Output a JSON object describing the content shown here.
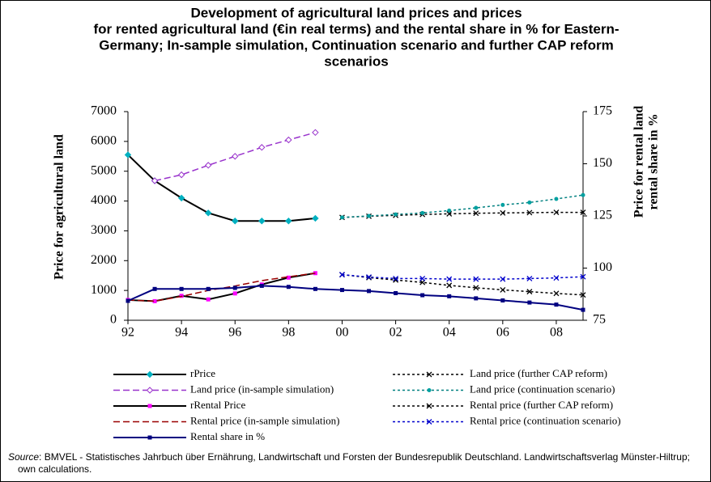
{
  "chart_data": {
    "type": "line",
    "title": [
      "Development of agricultural land prices and prices",
      "for rented agricultural land (€in real terms) and the rental share in % for Eastern-",
      "Germany; In-sample simulation, Continuation scenario and further CAP reform",
      "scenarios"
    ],
    "ylabel": "Price for agricultural land",
    "y2label": [
      "Price for rental land",
      "rental share in %"
    ],
    "xlim": [
      1992,
      2009
    ],
    "xticks": [
      {
        "value": 1992,
        "label": "92"
      },
      {
        "value": 1994,
        "label": "94"
      },
      {
        "value": 1996,
        "label": "96"
      },
      {
        "value": 1998,
        "label": "98"
      },
      {
        "value": 2000,
        "label": "00"
      },
      {
        "value": 2002,
        "label": "02"
      },
      {
        "value": 2004,
        "label": "04"
      },
      {
        "value": 2006,
        "label": "06"
      },
      {
        "value": 2008,
        "label": "08"
      }
    ],
    "ylim": [
      0,
      7000
    ],
    "yticks": [
      0,
      1000,
      2000,
      3000,
      4000,
      5000,
      6000,
      7000
    ],
    "y2lim": [
      75,
      175
    ],
    "y2ticks": [
      75,
      100,
      125,
      150,
      175
    ],
    "series": [
      {
        "name": "rPrice",
        "color": "#000000",
        "marker_color": "#00b0c0",
        "marker": "diamond",
        "dash": "none",
        "x": [
          1992,
          1993,
          1994,
          1995,
          1996,
          1997,
          1998,
          1999
        ],
        "values": [
          5550,
          4680,
          4100,
          3600,
          3330,
          3330,
          3330,
          3420
        ]
      },
      {
        "name": "Land price (in-sample simulation)",
        "color": "#9933cc",
        "marker_color": "#9933cc",
        "marker": "diamond-open",
        "dash": "8 4",
        "x": [
          1993,
          1994,
          1995,
          1996,
          1997,
          1998,
          1999
        ],
        "values": [
          4680,
          4880,
          5200,
          5500,
          5800,
          6050,
          6300
        ]
      },
      {
        "name": "rRental Price",
        "color": "#000000",
        "marker_color": "#ff00ff",
        "marker": "square",
        "dash": "none",
        "x": [
          1992,
          1993,
          1994,
          1995,
          1996,
          1997,
          1998,
          1999
        ],
        "values": [
          680,
          640,
          820,
          700,
          900,
          1200,
          1430,
          1580
        ]
      },
      {
        "name": "Rental price (in-sample simulation)",
        "color": "#990000",
        "marker_color": "#990000",
        "marker": "none",
        "dash": "8 4",
        "x": [
          1992,
          1993,
          1994,
          1995,
          1996,
          1997,
          1998,
          1999
        ],
        "values": [
          680,
          640,
          800,
          1000,
          1150,
          1330,
          1460,
          1580
        ]
      },
      {
        "name": "Rental share in %",
        "color": "#000080",
        "marker_color": "#000080",
        "marker": "square",
        "dash": "none",
        "axis": "y2",
        "x": [
          1992,
          1993,
          1994,
          1995,
          1996,
          1997,
          1998,
          1999,
          2000,
          2001,
          2002,
          2003,
          2004,
          2005,
          2006,
          2007,
          2008,
          2009
        ],
        "values": [
          84.3,
          90,
          90,
          90,
          90.5,
          91.5,
          91,
          90,
          89.5,
          89,
          88,
          87,
          86.5,
          85.5,
          84.5,
          83.5,
          82.5,
          80
        ]
      },
      {
        "name": "Land price (further CAP reform)",
        "color": "#000000",
        "marker_color": "#000000",
        "marker": "x",
        "dash": "3 3",
        "x": [
          2000,
          2001,
          2002,
          2003,
          2004,
          2005,
          2006,
          2007,
          2008,
          2009
        ],
        "values": [
          3450,
          3490,
          3520,
          3550,
          3570,
          3590,
          3600,
          3610,
          3620,
          3620
        ]
      },
      {
        "name": "Land price (continuation scenario)",
        "color": "#008080",
        "marker_color": "#00a0a0",
        "marker": "circle",
        "dash": "3 3",
        "x": [
          2000,
          2001,
          2002,
          2003,
          2004,
          2005,
          2006,
          2007,
          2008,
          2009
        ],
        "values": [
          3450,
          3500,
          3550,
          3600,
          3680,
          3770,
          3870,
          3950,
          4070,
          4200
        ]
      },
      {
        "name": "Rental price (further CAP reform)",
        "color": "#000000",
        "marker_color": "#000000",
        "marker": "x",
        "dash": "3 3",
        "x": [
          2000,
          2001,
          2002,
          2003,
          2004,
          2005,
          2006,
          2007,
          2008,
          2009
        ],
        "values": [
          1530,
          1430,
          1350,
          1270,
          1170,
          1090,
          1020,
          960,
          900,
          850
        ]
      },
      {
        "name": "Rental price (continuation scenario)",
        "color": "#0000cc",
        "marker_color": "#0000cc",
        "marker": "x",
        "dash": "3 3",
        "x": [
          2000,
          2001,
          2002,
          2003,
          2004,
          2005,
          2006,
          2007,
          2008,
          2009
        ],
        "values": [
          1530,
          1450,
          1400,
          1400,
          1380,
          1380,
          1380,
          1400,
          1420,
          1460
        ]
      }
    ],
    "legend_columns": 2,
    "source_label": "Source",
    "source_text": ": BMVEL - Statistisches Jahrbuch über Ernährung, Landwirtschaft und Forsten der Bundesrepublik Deutschland. Landwirtschaftsverlag Münster-Hiltrup; own calculations."
  }
}
